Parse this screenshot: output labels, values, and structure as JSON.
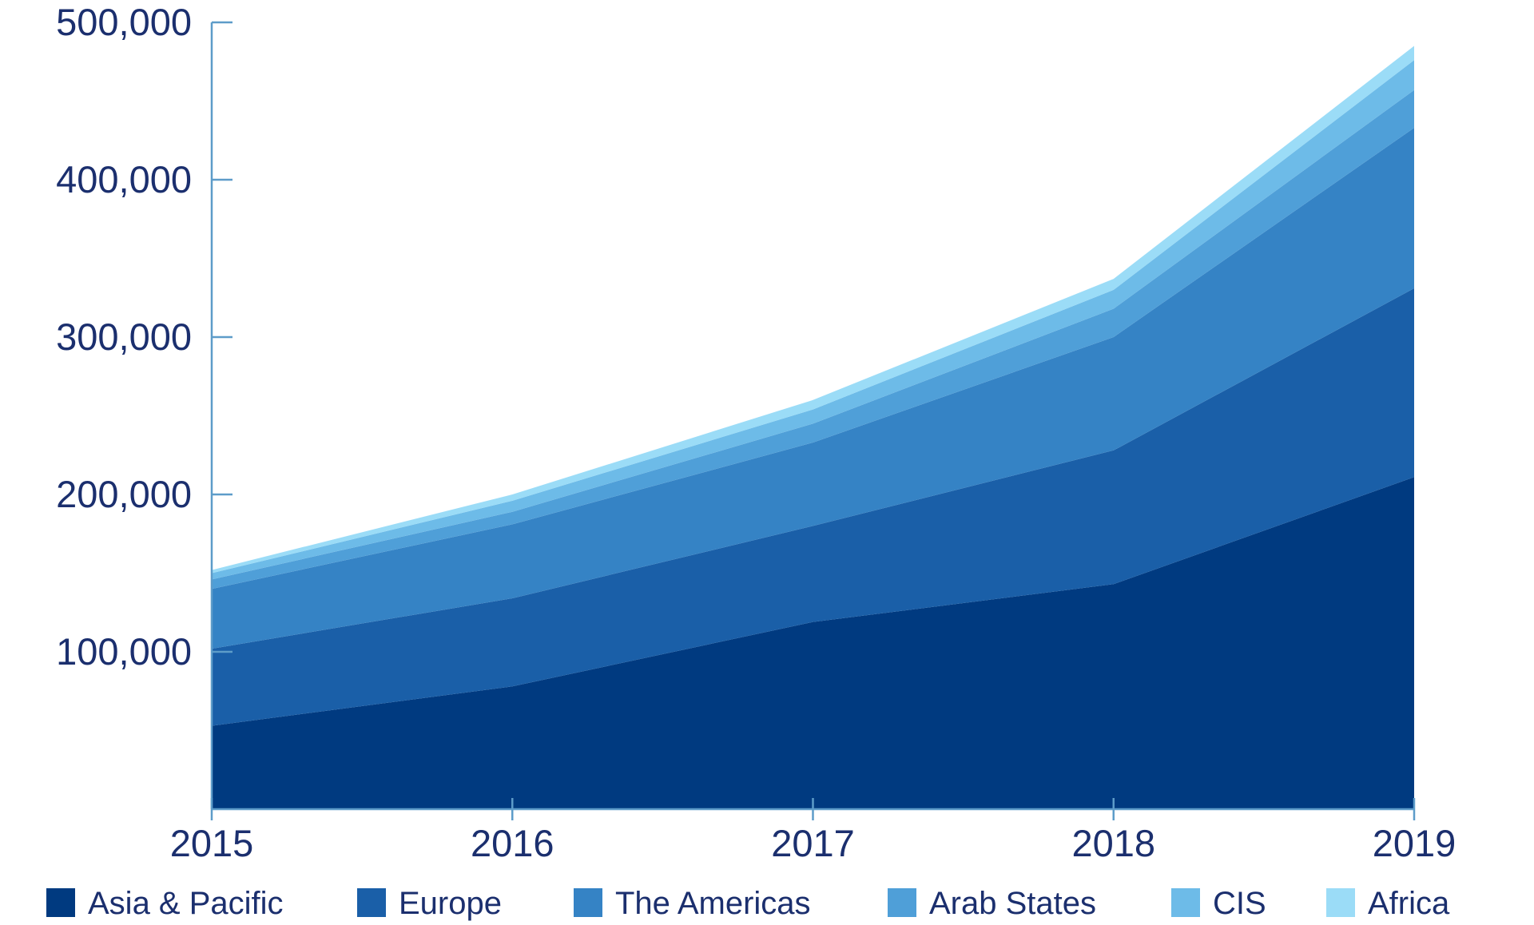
{
  "chart_data": {
    "type": "area",
    "stacked": true,
    "title": "",
    "xlabel": "",
    "ylabel": "",
    "x": [
      "2015",
      "2016",
      "2017",
      "2018",
      "2019"
    ],
    "ylim": [
      0,
      500000
    ],
    "yticks": [
      100000,
      200000,
      300000,
      400000,
      500000
    ],
    "ytick_labels": [
      "100,000",
      "200,000",
      "300,000",
      "400,000",
      "500,000"
    ],
    "grid": false,
    "legend_position": "bottom",
    "series": [
      {
        "name": "Asia & Pacific",
        "color": "#003a80",
        "values": [
          53000,
          78000,
          119000,
          143000,
          211000
        ]
      },
      {
        "name": "Europe",
        "color": "#1a5fa8",
        "values": [
          49000,
          56000,
          61000,
          85000,
          120000
        ]
      },
      {
        "name": "The Americas",
        "color": "#3583c5",
        "values": [
          38000,
          47000,
          53000,
          72000,
          102000
        ]
      },
      {
        "name": "Arab States",
        "color": "#4f9fd8",
        "values": [
          6000,
          8000,
          12000,
          18000,
          24000
        ]
      },
      {
        "name": "CIS",
        "color": "#6dbbe8",
        "values": [
          4000,
          7000,
          9000,
          12000,
          19000
        ]
      },
      {
        "name": "Africa",
        "color": "#9bdcf7",
        "values": [
          2000,
          4000,
          6000,
          7000,
          9000
        ]
      }
    ]
  }
}
